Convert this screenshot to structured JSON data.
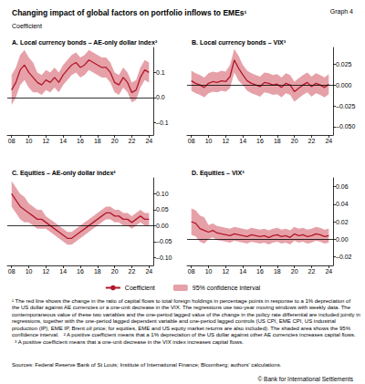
{
  "title": "Changing impact of global factors on portfolio inflows to EMEs¹",
  "label": "Graph 4",
  "subtitle": "Coefficient",
  "footnotes": [
    "¹ The red line shows the change in the ratio of capital flows to total foreign holdings in percentage points in response to a 1% depreciation of the US dollar against AE currencies or a one-unit decrease in the VIX. The regressions use two-year moving windows with weekly data. The contemporaneous value of these two variables and the one-period lagged value of the change in the policy rate differential are included jointly in regressions, together with the one-period lagged dependent variable and one-period lagged controls (US CPI, EME CPI, US industrial production (IP), EME IP, Brent oil price; for equities, EME and US equity market returns are also included). The shaded area shows the 95% confidence interval.",
    "² A positive coefficient means that a 1% depreciation of the US dollar against other AE currencies increases capital flows.",
    "³ A positive coefficient means that a one-unit decrease in the VIX index increases capital flows."
  ],
  "sources": "Sources: Federal Reserve Bank of St Louis; Institute of International Finance; Bloomberg; authors' calculations.",
  "copyright": "© Bank for International Settlements",
  "chart_data": [
    {
      "type": "line",
      "title": "A. Local currency bonds – AE-only dollar index²",
      "x": [
        2008,
        2008.5,
        2009,
        2009.5,
        2010,
        2010.5,
        2011,
        2011.5,
        2012,
        2012.5,
        2013,
        2013.5,
        2014,
        2014.5,
        2015,
        2015.5,
        2016,
        2016.5,
        2017,
        2017.5,
        2018,
        2018.5,
        2019,
        2019.5,
        2020,
        2020.5,
        2021,
        2021.5,
        2022,
        2022.5,
        2023,
        2023.5,
        2024
      ],
      "xlim": [
        2007.5,
        2024.5
      ],
      "xticks": [
        {
          "value": 2008,
          "label": "08"
        },
        {
          "value": 2010,
          "label": "10"
        },
        {
          "value": 2012,
          "label": "12"
        },
        {
          "value": 2014,
          "label": "14"
        },
        {
          "value": 2016,
          "label": "16"
        },
        {
          "value": 2018,
          "label": "18"
        },
        {
          "value": 2020,
          "label": "20"
        },
        {
          "value": 2022,
          "label": "22"
        },
        {
          "value": 2024,
          "label": "24"
        }
      ],
      "ylim": [
        -0.15,
        0.2
      ],
      "yticks": [
        {
          "value": -0.1,
          "label": "–0.1"
        },
        {
          "value": 0,
          "label": "0.0"
        },
        {
          "value": 0.1,
          "label": "0.1"
        }
      ],
      "grid": false,
      "legend": "bottom",
      "series": [
        {
          "name": "95% confidence interval",
          "type": "band",
          "color": "#e6a1a8",
          "lower": [
            -0.03,
            0.0,
            0.05,
            0.07,
            0.04,
            0.02,
            0.02,
            0.01,
            0.03,
            0.02,
            0.04,
            0.02,
            0.05,
            0.07,
            0.09,
            0.1,
            0.08,
            0.09,
            0.11,
            0.1,
            0.09,
            0.08,
            0.08,
            0.06,
            0.02,
            0.01,
            0.04,
            0.02,
            -0.02,
            -0.01,
            0.04,
            0.07,
            0.06
          ],
          "upper": [
            0.09,
            0.12,
            0.17,
            0.19,
            0.16,
            0.14,
            0.1,
            0.09,
            0.11,
            0.1,
            0.12,
            0.1,
            0.13,
            0.15,
            0.17,
            0.18,
            0.16,
            0.17,
            0.19,
            0.18,
            0.17,
            0.16,
            0.16,
            0.14,
            0.1,
            0.09,
            0.12,
            0.1,
            0.06,
            0.07,
            0.12,
            0.15,
            0.14
          ]
        },
        {
          "name": "Coefficient",
          "type": "line",
          "color": "#b2182b",
          "values": [
            0.03,
            0.06,
            0.11,
            0.13,
            0.1,
            0.08,
            0.06,
            0.05,
            0.07,
            0.06,
            0.08,
            0.06,
            0.09,
            0.11,
            0.13,
            0.14,
            0.12,
            0.13,
            0.15,
            0.14,
            0.13,
            0.12,
            0.12,
            0.1,
            0.06,
            0.05,
            0.08,
            0.06,
            0.02,
            0.03,
            0.08,
            0.11,
            0.1
          ]
        }
      ]
    },
    {
      "type": "line",
      "title": "B. Local currency bonds – VIX³",
      "x": [
        2008,
        2008.5,
        2009,
        2009.5,
        2010,
        2010.5,
        2011,
        2011.5,
        2012,
        2012.5,
        2013,
        2013.5,
        2014,
        2014.5,
        2015,
        2015.5,
        2016,
        2016.5,
        2017,
        2017.5,
        2018,
        2018.5,
        2019,
        2019.5,
        2020,
        2020.5,
        2021,
        2021.5,
        2022,
        2022.5,
        2023,
        2023.5,
        2024
      ],
      "xlim": [
        2007.5,
        2024.5
      ],
      "xticks": [
        {
          "value": 2008,
          "label": "08"
        },
        {
          "value": 2010,
          "label": "10"
        },
        {
          "value": 2012,
          "label": "12"
        },
        {
          "value": 2014,
          "label": "14"
        },
        {
          "value": 2016,
          "label": "16"
        },
        {
          "value": 2018,
          "label": "18"
        },
        {
          "value": 2020,
          "label": "20"
        },
        {
          "value": 2022,
          "label": "22"
        },
        {
          "value": 2024,
          "label": "24"
        }
      ],
      "ylim": [
        -0.06,
        0.045
      ],
      "yticks": [
        {
          "value": -0.05,
          "label": "–0.050"
        },
        {
          "value": -0.025,
          "label": "–0.025"
        },
        {
          "value": 0,
          "label": "0.000"
        },
        {
          "value": 0.025,
          "label": "0.025"
        }
      ],
      "grid": false,
      "legend": "bottom",
      "series": [
        {
          "name": "95% confidence interval",
          "type": "band",
          "color": "#e6a1a8",
          "lower": [
            -0.007,
            -0.01,
            -0.012,
            -0.015,
            -0.01,
            -0.008,
            -0.009,
            -0.007,
            -0.008,
            -0.004,
            0.015,
            0.005,
            0.0,
            -0.007,
            -0.01,
            -0.012,
            -0.014,
            -0.009,
            -0.01,
            -0.012,
            -0.011,
            -0.015,
            -0.01,
            -0.012,
            -0.02,
            -0.016,
            -0.012,
            -0.009,
            -0.014,
            -0.01,
            -0.012,
            -0.015,
            -0.011
          ],
          "upper": [
            0.017,
            0.014,
            0.012,
            0.009,
            0.014,
            0.016,
            0.015,
            0.017,
            0.016,
            0.024,
            0.043,
            0.035,
            0.024,
            0.017,
            0.014,
            0.012,
            0.01,
            0.015,
            0.014,
            0.012,
            0.013,
            0.009,
            0.014,
            0.012,
            0.004,
            0.008,
            0.012,
            0.015,
            0.01,
            0.014,
            0.012,
            0.009,
            0.013
          ]
        },
        {
          "name": "Coefficient",
          "type": "line",
          "color": "#b2182b",
          "values": [
            0.005,
            0.002,
            0.0,
            -0.003,
            0.002,
            0.004,
            0.003,
            0.005,
            0.004,
            0.01,
            0.03,
            0.02,
            0.012,
            0.005,
            0.002,
            0.0,
            -0.002,
            0.003,
            0.002,
            0.0,
            0.001,
            -0.003,
            0.002,
            0.0,
            -0.008,
            -0.004,
            0.0,
            0.003,
            -0.002,
            0.002,
            0.0,
            -0.003,
            0.001
          ]
        }
      ]
    },
    {
      "type": "line",
      "title": "C. Equities – AE-only dollar index²",
      "x": [
        2008,
        2008.5,
        2009,
        2009.5,
        2010,
        2010.5,
        2011,
        2011.5,
        2012,
        2012.5,
        2013,
        2013.5,
        2014,
        2014.5,
        2015,
        2015.5,
        2016,
        2016.5,
        2017,
        2017.5,
        2018,
        2018.5,
        2019,
        2019.5,
        2020,
        2020.5,
        2021,
        2021.5,
        2022,
        2022.5,
        2023,
        2023.5,
        2024
      ],
      "xlim": [
        2007.5,
        2024.5
      ],
      "xticks": [
        {
          "value": 2008,
          "label": "08"
        },
        {
          "value": 2010,
          "label": "10"
        },
        {
          "value": 2012,
          "label": "12"
        },
        {
          "value": 2014,
          "label": "14"
        },
        {
          "value": 2016,
          "label": "16"
        },
        {
          "value": 2018,
          "label": "18"
        },
        {
          "value": 2020,
          "label": "20"
        },
        {
          "value": 2022,
          "label": "22"
        },
        {
          "value": 2024,
          "label": "24"
        }
      ],
      "ylim": [
        -0.125,
        0.15
      ],
      "yticks": [
        {
          "value": -0.1,
          "label": "–0.10"
        },
        {
          "value": -0.05,
          "label": "–0.05"
        },
        {
          "value": 0,
          "label": "0.00"
        },
        {
          "value": 0.05,
          "label": "0.05"
        },
        {
          "value": 0.1,
          "label": "0.10"
        }
      ],
      "grid": false,
      "legend": "bottom",
      "series": [
        {
          "name": "95% confidence interval",
          "type": "band",
          "color": "#e6a1a8",
          "lower": [
            0.06,
            0.04,
            0.02,
            0.01,
            0.01,
            0.0,
            -0.01,
            -0.01,
            -0.01,
            -0.02,
            -0.03,
            -0.04,
            -0.05,
            -0.06,
            -0.06,
            -0.05,
            -0.04,
            -0.03,
            -0.02,
            -0.01,
            0.0,
            0.01,
            0.02,
            0.02,
            0.01,
            0.01,
            0.0,
            0.0,
            -0.01,
            0.0,
            0.01,
            0.0,
            0.0
          ],
          "upper": [
            0.14,
            0.12,
            0.1,
            0.09,
            0.07,
            0.06,
            0.05,
            0.05,
            0.03,
            0.02,
            0.01,
            0.0,
            -0.01,
            -0.02,
            -0.02,
            -0.01,
            0.0,
            0.01,
            0.02,
            0.03,
            0.04,
            0.05,
            0.06,
            0.06,
            0.05,
            0.05,
            0.04,
            0.04,
            0.03,
            0.04,
            0.05,
            0.04,
            0.04
          ]
        },
        {
          "name": "Coefficient",
          "type": "line",
          "color": "#b2182b",
          "values": [
            0.1,
            0.08,
            0.06,
            0.05,
            0.04,
            0.03,
            0.02,
            0.02,
            0.01,
            0.0,
            -0.01,
            -0.02,
            -0.03,
            -0.04,
            -0.04,
            -0.03,
            -0.02,
            -0.01,
            0.0,
            0.01,
            0.02,
            0.03,
            0.04,
            0.04,
            0.03,
            0.03,
            0.02,
            0.02,
            0.01,
            0.02,
            0.03,
            0.02,
            0.02
          ]
        }
      ]
    },
    {
      "type": "line",
      "title": "D. Equities – VIX³",
      "x": [
        2008,
        2008.5,
        2009,
        2009.5,
        2010,
        2010.5,
        2011,
        2011.5,
        2012,
        2012.5,
        2013,
        2013.5,
        2014,
        2014.5,
        2015,
        2015.5,
        2016,
        2016.5,
        2017,
        2017.5,
        2018,
        2018.5,
        2019,
        2019.5,
        2020,
        2020.5,
        2021,
        2021.5,
        2022,
        2022.5,
        2023,
        2023.5,
        2024
      ],
      "xlim": [
        2007.5,
        2024.5
      ],
      "xticks": [
        {
          "value": 2008,
          "label": "08"
        },
        {
          "value": 2010,
          "label": "10"
        },
        {
          "value": 2012,
          "label": "12"
        },
        {
          "value": 2014,
          "label": "14"
        },
        {
          "value": 2016,
          "label": "16"
        },
        {
          "value": 2018,
          "label": "18"
        },
        {
          "value": 2020,
          "label": "20"
        },
        {
          "value": 2022,
          "label": "22"
        },
        {
          "value": 2024,
          "label": "24"
        }
      ],
      "ylim": [
        -0.03,
        0.07
      ],
      "yticks": [
        {
          "value": -0.02,
          "label": "–0.02"
        },
        {
          "value": 0,
          "label": "0.00"
        },
        {
          "value": 0.02,
          "label": "0.02"
        },
        {
          "value": 0.04,
          "label": "0.04"
        },
        {
          "value": 0.06,
          "label": "0.06"
        }
      ],
      "grid": false,
      "legend": "bottom",
      "series": [
        {
          "name": "95% confidence interval",
          "type": "band",
          "color": "#e6a1a8",
          "lower": [
            0.005,
            0.003,
            -0.003,
            -0.005,
            0.0,
            0.002,
            -0.001,
            -0.002,
            -0.003,
            -0.004,
            -0.002,
            -0.003,
            -0.004,
            -0.005,
            -0.003,
            -0.004,
            -0.005,
            -0.004,
            -0.006,
            -0.004,
            -0.003,
            -0.005,
            -0.004,
            -0.006,
            -0.002,
            -0.004,
            -0.003,
            -0.005,
            -0.004,
            -0.002,
            -0.003,
            -0.005,
            -0.004
          ],
          "upper": [
            0.035,
            0.033,
            0.027,
            0.025,
            0.016,
            0.018,
            0.015,
            0.014,
            0.013,
            0.012,
            0.014,
            0.013,
            0.012,
            0.011,
            0.013,
            0.012,
            0.011,
            0.012,
            0.01,
            0.012,
            0.013,
            0.011,
            0.012,
            0.01,
            0.014,
            0.012,
            0.013,
            0.011,
            0.012,
            0.014,
            0.013,
            0.011,
            0.012
          ]
        },
        {
          "name": "Coefficient",
          "type": "line",
          "color": "#b2182b",
          "values": [
            0.02,
            0.018,
            0.012,
            0.01,
            0.008,
            0.01,
            0.007,
            0.006,
            0.005,
            0.004,
            0.006,
            0.005,
            0.004,
            0.003,
            0.005,
            0.004,
            0.003,
            0.004,
            0.002,
            0.004,
            0.005,
            0.003,
            0.004,
            0.002,
            0.006,
            0.004,
            0.005,
            0.003,
            0.004,
            0.006,
            0.005,
            0.003,
            0.004
          ]
        }
      ]
    }
  ]
}
